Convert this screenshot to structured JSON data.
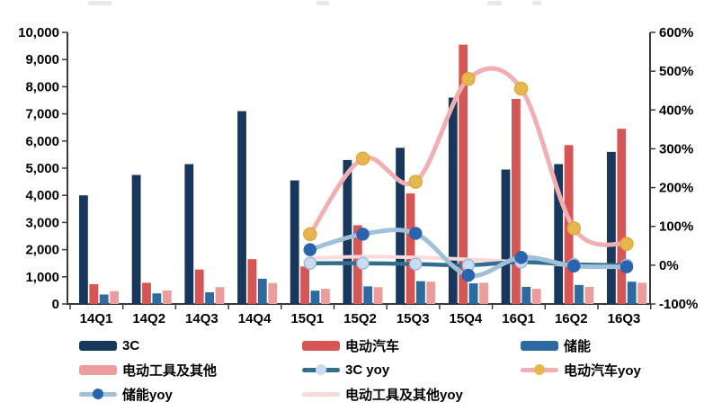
{
  "chart_data": {
    "type": "bar+line combo",
    "title": "",
    "xlabel": "",
    "ylabel_left": "",
    "ylabel_right": "",
    "grid": false,
    "legend_position": "bottom",
    "categories": [
      "14Q1",
      "14Q2",
      "14Q3",
      "14Q4",
      "15Q1",
      "15Q2",
      "15Q3",
      "15Q4",
      "16Q1",
      "16Q2",
      "16Q3"
    ],
    "bar_series": [
      {
        "name": "3C",
        "color": "#17375C",
        "axis": "left",
        "values": [
          4000,
          4750,
          5150,
          7100,
          4550,
          5300,
          5750,
          7600,
          4950,
          5150,
          5600
        ]
      },
      {
        "name": "电动汽车",
        "color": "#D65555",
        "axis": "left",
        "values": [
          730,
          780,
          1270,
          1650,
          1380,
          2900,
          4070,
          9550,
          7550,
          5850,
          6450
        ]
      },
      {
        "name": "储能",
        "color": "#2D6A9F",
        "axis": "left",
        "values": [
          350,
          390,
          430,
          930,
          490,
          650,
          840,
          760,
          630,
          700,
          820
        ]
      },
      {
        "name": "电动工具及其他",
        "color": "#ED9C9C",
        "axis": "left",
        "values": [
          470,
          500,
          620,
          770,
          560,
          620,
          820,
          780,
          560,
          630,
          780
        ]
      }
    ],
    "line_series": [
      {
        "name": "电动工具及其他yoy",
        "line_color": "#F9D9D9",
        "marker": null,
        "axis": "right",
        "values": [
          null,
          null,
          null,
          null,
          18,
          22,
          20,
          15,
          8,
          0,
          -2
        ]
      },
      {
        "name": "3C yoy",
        "line_color": "#336E8E",
        "marker": {
          "fill": "#C9DCF0",
          "stroke": "#9FBBD8"
        },
        "axis": "right",
        "values": [
          null,
          null,
          null,
          null,
          5,
          5,
          3,
          0,
          8,
          2,
          0
        ]
      },
      {
        "name": "储能yoy",
        "line_color": "#9FC0D8",
        "marker": {
          "fill": "#2B64AE",
          "stroke": "#2B64AE"
        },
        "axis": "right",
        "values": [
          null,
          null,
          null,
          null,
          40,
          80,
          82,
          -26,
          20,
          -2,
          -4
        ]
      },
      {
        "name": "电动汽车yoy",
        "line_color": "#F2AFB2",
        "marker": {
          "fill": "#E7B64F",
          "stroke": "#DFA93C"
        },
        "axis": "right",
        "values": [
          null,
          null,
          null,
          null,
          80,
          275,
          215,
          480,
          455,
          95,
          55
        ]
      }
    ],
    "left_axis": {
      "min": 0,
      "max": 10000,
      "step": 1000,
      "tick_labels": [
        "0",
        "1,000",
        "2,000",
        "3,000",
        "4,000",
        "5,000",
        "6,000",
        "7,000",
        "8,000",
        "9,000",
        "10,000"
      ]
    },
    "right_axis": {
      "min": -100,
      "max": 600,
      "step": 100,
      "tick_labels": [
        "-100%",
        "0%",
        "100%",
        "200%",
        "300%",
        "400%",
        "500%",
        "600%"
      ]
    },
    "legend": [
      {
        "label": "3C",
        "type": "bar",
        "color": "#17375C",
        "marker_color": null
      },
      {
        "label": "电动汽车",
        "type": "bar",
        "color": "#D65555",
        "marker_color": null
      },
      {
        "label": "储能",
        "type": "bar",
        "color": "#2D6A9F",
        "marker_color": null
      },
      {
        "label": "电动工具及其他",
        "type": "bar",
        "color": "#ED9C9C",
        "marker_color": null
      },
      {
        "label": "3C yoy",
        "type": "line",
        "color": "#336E8E",
        "marker_color": "#C9DCF0"
      },
      {
        "label": "电动汽车yoy",
        "type": "line",
        "color": "#F2AFB2",
        "marker_color": "#E7B64F"
      },
      {
        "label": "储能yoy",
        "type": "line",
        "color": "#9FC0D8",
        "marker_color": "#2B64AE"
      },
      {
        "label": "电动工具及其他yoy",
        "type": "line",
        "color": "#F9D9D9",
        "marker_color": null
      }
    ]
  }
}
